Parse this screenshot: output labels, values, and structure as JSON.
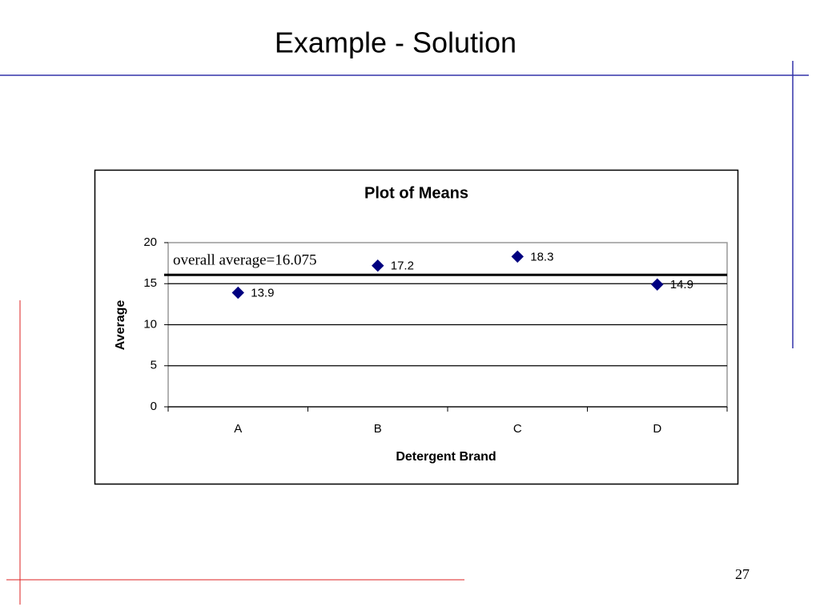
{
  "slide": {
    "title": "Example - Solution",
    "page_number": "27"
  },
  "chart_data": {
    "type": "scatter",
    "title": "Plot of Means",
    "x_label": "Detergent Brand",
    "y_label": "Average",
    "categories": [
      "A",
      "B",
      "C",
      "D"
    ],
    "values": [
      13.9,
      17.2,
      18.3,
      14.9
    ],
    "color": "#000080",
    "ylim": [
      0,
      20
    ],
    "yticks": [
      0,
      5,
      10,
      15,
      20
    ],
    "grid": true,
    "reference_line": {
      "value": 16.075,
      "label": "overall average=16.075"
    }
  }
}
